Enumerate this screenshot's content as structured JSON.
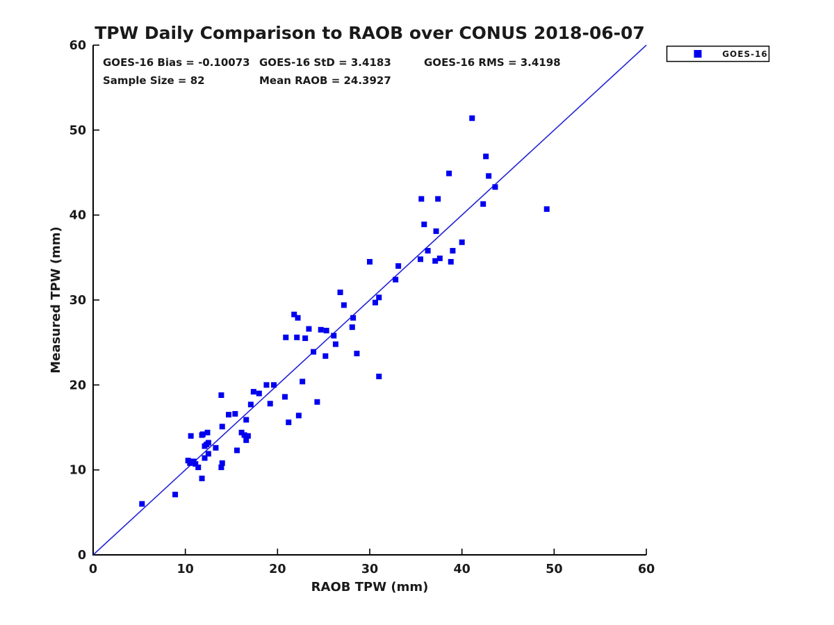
{
  "colors": {
    "marker": "#0000ee",
    "reference_line": "#2323d7",
    "axis": "#000000",
    "text": "#1a1a1a",
    "background": "#ffffff"
  },
  "legend": {
    "entries": [
      {
        "label": "GOES-16",
        "marker_color": "#0000ee"
      }
    ],
    "position": "top-right-outside"
  },
  "chart_data": {
    "type": "scatter",
    "title": "TPW Daily Comparison to RAOB over CONUS 2018-06-07",
    "xlabel": "RAOB TPW (mm)",
    "ylabel": "Measured TPW (mm)",
    "xlim": [
      0,
      60
    ],
    "ylim": [
      0,
      60
    ],
    "xticks": [
      0,
      10,
      20,
      30,
      40,
      50,
      60
    ],
    "yticks": [
      0,
      10,
      20,
      30,
      40,
      50,
      60
    ],
    "grid": false,
    "annotations": [
      {
        "text": "GOES-16 Bias = -0.10073",
        "px": [
          148,
          95
        ]
      },
      {
        "text": "GOES-16 StD = 3.4183",
        "px": [
          373,
          95
        ]
      },
      {
        "text": "GOES-16 RMS = 3.4198",
        "px": [
          610,
          95
        ]
      },
      {
        "text": "Sample Size = 82",
        "px": [
          148,
          121
        ]
      },
      {
        "text": "Mean RAOB = 24.3927",
        "px": [
          373,
          121
        ]
      }
    ],
    "stats": {
      "bias": -0.10073,
      "std": 3.4183,
      "rms": 3.4198,
      "sample_size": 82,
      "mean_raob": 24.3927
    },
    "reference_line": {
      "from": [
        0,
        0
      ],
      "to": [
        60,
        60
      ]
    },
    "series": [
      {
        "name": "GOES-16",
        "marker": "square",
        "color": "#0000ee",
        "points": [
          [
            5.3,
            6.0
          ],
          [
            8.9,
            7.1
          ],
          [
            11.8,
            9.0
          ],
          [
            11.4,
            10.3
          ],
          [
            13.9,
            10.3
          ],
          [
            11.1,
            10.7
          ],
          [
            10.5,
            10.8
          ],
          [
            14.0,
            10.8
          ],
          [
            10.9,
            11.0
          ],
          [
            10.3,
            11.1
          ],
          [
            12.1,
            11.4
          ],
          [
            12.5,
            11.9
          ],
          [
            15.6,
            12.3
          ],
          [
            13.3,
            12.6
          ],
          [
            12.1,
            12.8
          ],
          [
            12.3,
            13.0
          ],
          [
            12.5,
            13.2
          ],
          [
            16.6,
            13.5
          ],
          [
            16.8,
            14.0
          ],
          [
            10.6,
            14.0
          ],
          [
            11.8,
            14.1
          ],
          [
            16.4,
            14.1
          ],
          [
            11.9,
            14.2
          ],
          [
            12.4,
            14.4
          ],
          [
            16.1,
            14.4
          ],
          [
            14.0,
            15.1
          ],
          [
            21.2,
            15.6
          ],
          [
            16.6,
            15.9
          ],
          [
            22.3,
            16.4
          ],
          [
            14.7,
            16.5
          ],
          [
            15.4,
            16.6
          ],
          [
            17.1,
            17.7
          ],
          [
            19.2,
            17.8
          ],
          [
            24.3,
            18.0
          ],
          [
            20.8,
            18.6
          ],
          [
            13.9,
            18.8
          ],
          [
            18.0,
            19.0
          ],
          [
            17.4,
            19.2
          ],
          [
            18.8,
            20.0
          ],
          [
            19.6,
            20.0
          ],
          [
            22.7,
            20.4
          ],
          [
            31.0,
            21.0
          ],
          [
            25.2,
            23.4
          ],
          [
            28.6,
            23.7
          ],
          [
            23.9,
            23.9
          ],
          [
            26.3,
            24.8
          ],
          [
            23.0,
            25.5
          ],
          [
            20.9,
            25.6
          ],
          [
            22.1,
            25.6
          ],
          [
            26.1,
            25.8
          ],
          [
            25.3,
            26.4
          ],
          [
            24.7,
            26.5
          ],
          [
            23.4,
            26.6
          ],
          [
            28.1,
            26.8
          ],
          [
            22.2,
            27.9
          ],
          [
            28.2,
            27.9
          ],
          [
            21.8,
            28.3
          ],
          [
            27.2,
            29.4
          ],
          [
            30.6,
            29.7
          ],
          [
            31.0,
            30.3
          ],
          [
            26.8,
            30.9
          ],
          [
            32.8,
            32.4
          ],
          [
            33.1,
            34.0
          ],
          [
            30.0,
            34.5
          ],
          [
            38.8,
            34.5
          ],
          [
            37.1,
            34.6
          ],
          [
            35.5,
            34.8
          ],
          [
            37.6,
            34.9
          ],
          [
            36.3,
            35.8
          ],
          [
            39.0,
            35.8
          ],
          [
            40.0,
            36.8
          ],
          [
            37.2,
            38.1
          ],
          [
            35.9,
            38.9
          ],
          [
            49.2,
            40.7
          ],
          [
            42.3,
            41.3
          ],
          [
            35.6,
            41.9
          ],
          [
            37.4,
            41.9
          ],
          [
            43.6,
            43.3
          ],
          [
            42.9,
            44.6
          ],
          [
            38.6,
            44.9
          ],
          [
            42.6,
            46.9
          ],
          [
            41.1,
            51.4
          ]
        ]
      }
    ],
    "legend_label": "GOES-16"
  }
}
